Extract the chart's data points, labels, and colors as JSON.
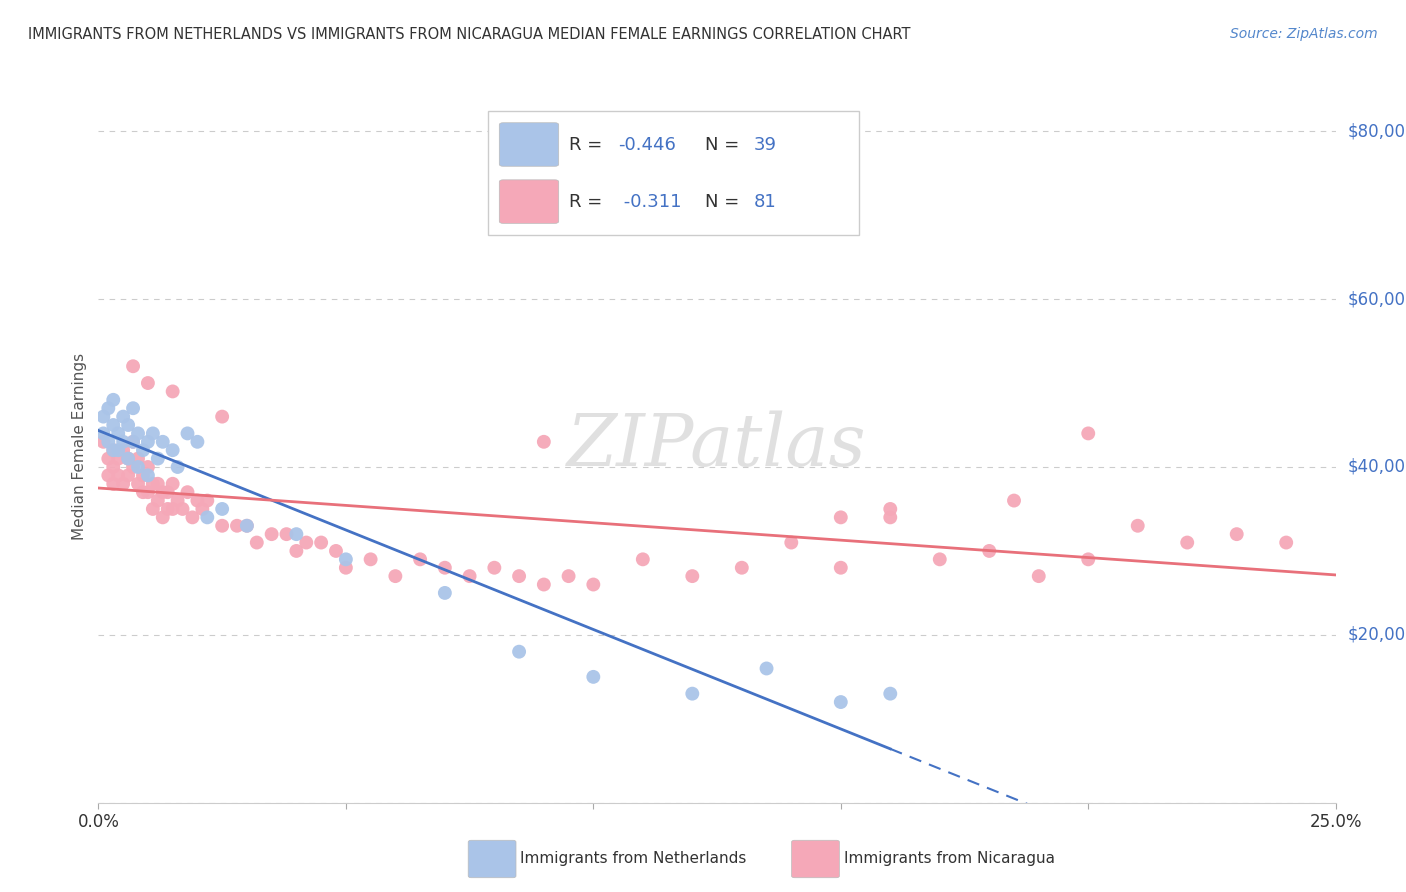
{
  "title": "IMMIGRANTS FROM NETHERLANDS VS IMMIGRANTS FROM NICARAGUA MEDIAN FEMALE EARNINGS CORRELATION CHART",
  "source": "Source: ZipAtlas.com",
  "ylabel": "Median Female Earnings",
  "xlim": [
    0.0,
    0.25
  ],
  "ylim": [
    0,
    85000
  ],
  "yticks": [
    0,
    20000,
    40000,
    60000,
    80000
  ],
  "ytick_labels": [
    "",
    "$20,000",
    "$40,000",
    "$60,000",
    "$80,000"
  ],
  "xtick_positions": [
    0.0,
    0.05,
    0.1,
    0.15,
    0.2,
    0.25
  ],
  "xtick_labels": [
    "0.0%",
    "",
    "",
    "",
    "",
    "25.0%"
  ],
  "netherlands_color": "#aac4e8",
  "nicaragua_color": "#f5a8b8",
  "netherlands_line_color": "#4472c4",
  "nicaragua_line_color": "#e8707a",
  "R_netherlands": -0.446,
  "N_netherlands": 39,
  "R_nicaragua": -0.311,
  "N_nicaragua": 81,
  "netherlands_scatter": [
    [
      0.001,
      46000
    ],
    [
      0.001,
      44000
    ],
    [
      0.002,
      47000
    ],
    [
      0.002,
      43000
    ],
    [
      0.003,
      45000
    ],
    [
      0.003,
      42000
    ],
    [
      0.003,
      48000
    ],
    [
      0.004,
      44000
    ],
    [
      0.004,
      42000
    ],
    [
      0.005,
      46000
    ],
    [
      0.005,
      43000
    ],
    [
      0.006,
      45000
    ],
    [
      0.006,
      41000
    ],
    [
      0.007,
      47000
    ],
    [
      0.007,
      43000
    ],
    [
      0.008,
      44000
    ],
    [
      0.008,
      40000
    ],
    [
      0.009,
      42000
    ],
    [
      0.01,
      43000
    ],
    [
      0.01,
      39000
    ],
    [
      0.011,
      44000
    ],
    [
      0.012,
      41000
    ],
    [
      0.013,
      43000
    ],
    [
      0.015,
      42000
    ],
    [
      0.016,
      40000
    ],
    [
      0.018,
      44000
    ],
    [
      0.02,
      43000
    ],
    [
      0.022,
      34000
    ],
    [
      0.025,
      35000
    ],
    [
      0.03,
      33000
    ],
    [
      0.04,
      32000
    ],
    [
      0.05,
      29000
    ],
    [
      0.07,
      25000
    ],
    [
      0.085,
      18000
    ],
    [
      0.1,
      15000
    ],
    [
      0.12,
      13000
    ],
    [
      0.135,
      16000
    ],
    [
      0.15,
      12000
    ],
    [
      0.16,
      13000
    ]
  ],
  "nicaragua_scatter": [
    [
      0.001,
      43000
    ],
    [
      0.002,
      41000
    ],
    [
      0.002,
      39000
    ],
    [
      0.003,
      42000
    ],
    [
      0.003,
      40000
    ],
    [
      0.003,
      38000
    ],
    [
      0.004,
      41000
    ],
    [
      0.004,
      39000
    ],
    [
      0.005,
      42000
    ],
    [
      0.005,
      38000
    ],
    [
      0.006,
      41000
    ],
    [
      0.006,
      39000
    ],
    [
      0.007,
      43000
    ],
    [
      0.007,
      40000
    ],
    [
      0.008,
      38000
    ],
    [
      0.008,
      41000
    ],
    [
      0.009,
      39000
    ],
    [
      0.009,
      37000
    ],
    [
      0.01,
      40000
    ],
    [
      0.01,
      37000
    ],
    [
      0.011,
      38000
    ],
    [
      0.011,
      35000
    ],
    [
      0.012,
      38000
    ],
    [
      0.012,
      36000
    ],
    [
      0.013,
      37000
    ],
    [
      0.013,
      34000
    ],
    [
      0.014,
      37000
    ],
    [
      0.014,
      35000
    ],
    [
      0.015,
      38000
    ],
    [
      0.015,
      35000
    ],
    [
      0.016,
      36000
    ],
    [
      0.017,
      35000
    ],
    [
      0.018,
      37000
    ],
    [
      0.019,
      34000
    ],
    [
      0.02,
      36000
    ],
    [
      0.021,
      35000
    ],
    [
      0.022,
      36000
    ],
    [
      0.025,
      33000
    ],
    [
      0.028,
      33000
    ],
    [
      0.03,
      33000
    ],
    [
      0.032,
      31000
    ],
    [
      0.035,
      32000
    ],
    [
      0.038,
      32000
    ],
    [
      0.04,
      30000
    ],
    [
      0.042,
      31000
    ],
    [
      0.045,
      31000
    ],
    [
      0.048,
      30000
    ],
    [
      0.05,
      28000
    ],
    [
      0.055,
      29000
    ],
    [
      0.06,
      27000
    ],
    [
      0.065,
      29000
    ],
    [
      0.07,
      28000
    ],
    [
      0.075,
      27000
    ],
    [
      0.08,
      28000
    ],
    [
      0.085,
      27000
    ],
    [
      0.09,
      26000
    ],
    [
      0.095,
      27000
    ],
    [
      0.1,
      26000
    ],
    [
      0.11,
      29000
    ],
    [
      0.12,
      27000
    ],
    [
      0.13,
      28000
    ],
    [
      0.14,
      31000
    ],
    [
      0.15,
      28000
    ],
    [
      0.16,
      34000
    ],
    [
      0.17,
      29000
    ],
    [
      0.18,
      30000
    ],
    [
      0.185,
      36000
    ],
    [
      0.19,
      27000
    ],
    [
      0.2,
      29000
    ],
    [
      0.2,
      44000
    ],
    [
      0.21,
      33000
    ],
    [
      0.22,
      31000
    ],
    [
      0.23,
      32000
    ],
    [
      0.24,
      31000
    ],
    [
      0.007,
      52000
    ],
    [
      0.01,
      50000
    ],
    [
      0.025,
      46000
    ],
    [
      0.09,
      43000
    ],
    [
      0.16,
      35000
    ],
    [
      0.15,
      34000
    ],
    [
      0.015,
      49000
    ]
  ]
}
